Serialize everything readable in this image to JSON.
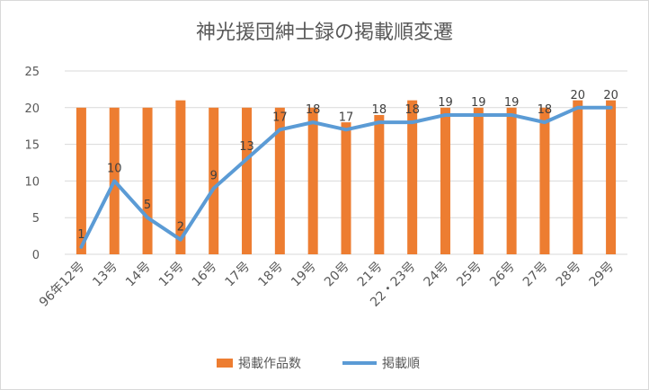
{
  "chart_data": {
    "type": "bar",
    "title": "神光援団紳士録の掲載順変遷",
    "categories": [
      "96年12号",
      "13号",
      "14号",
      "15号",
      "16号",
      "17号",
      "18号",
      "19号",
      "20号",
      "21号",
      "22・23号",
      "24号",
      "25号",
      "26号",
      "27号",
      "28号",
      "29号"
    ],
    "series": [
      {
        "name": "掲載作品数",
        "type": "bar",
        "color": "#ed7d31",
        "values": [
          20,
          20,
          20,
          21,
          20,
          20,
          20,
          20,
          18,
          19,
          21,
          20,
          20,
          20,
          20,
          21,
          21
        ]
      },
      {
        "name": "掲載順",
        "type": "line",
        "color": "#5b9bd5",
        "values": [
          1,
          10,
          5,
          2,
          9,
          13,
          17,
          18,
          17,
          18,
          18,
          19,
          19,
          19,
          18,
          20,
          20
        ]
      }
    ],
    "ylim": [
      0,
      25
    ],
    "yticks": [
      0,
      5,
      10,
      15,
      20,
      25
    ],
    "grid": true,
    "legend": "bottom",
    "data_labels_series": "掲載順"
  }
}
